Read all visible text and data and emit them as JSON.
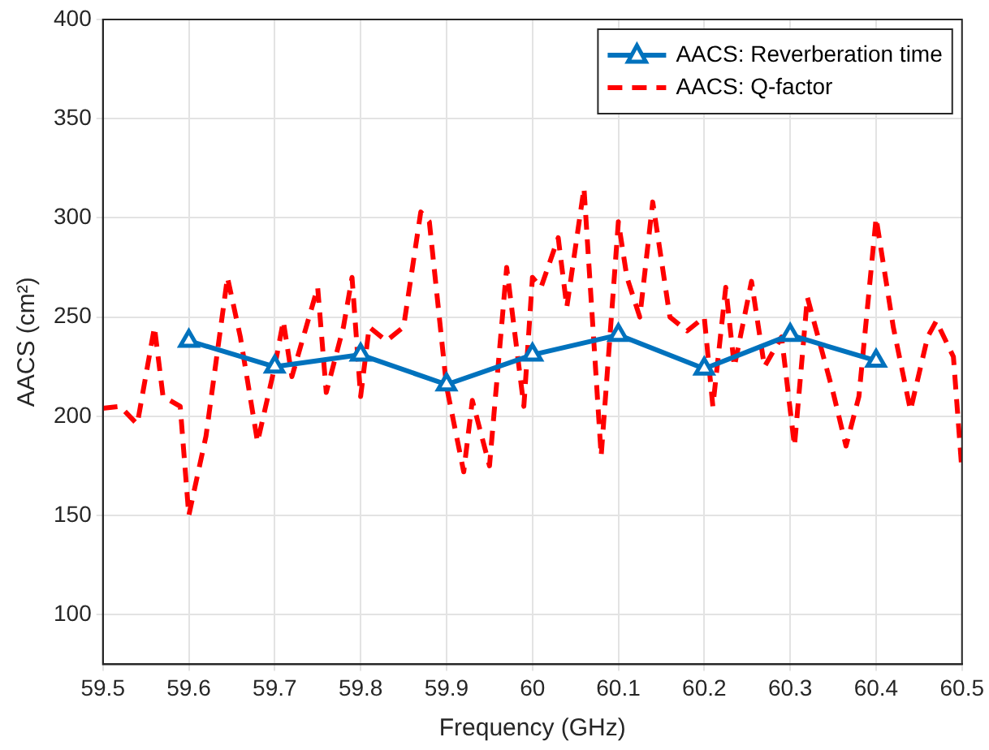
{
  "chart_data": {
    "type": "line",
    "xlabel": "Frequency (GHz)",
    "ylabel": "AACS (cm²)",
    "xlim": [
      59.5,
      60.5
    ],
    "xticks": [
      59.5,
      59.6,
      59.7,
      59.8,
      59.9,
      60,
      60.1,
      60.2,
      60.3,
      60.4,
      60.5
    ],
    "ylim": [
      75,
      400
    ],
    "yticks": [
      100,
      150,
      200,
      250,
      300,
      350,
      400
    ],
    "grid": true,
    "legend": "top right",
    "series": [
      {
        "name": "AACS: Reverberation time",
        "color": "#0072bd",
        "marker": "triangle",
        "line_style": "solid",
        "x": [
          59.6,
          59.7,
          59.8,
          59.9,
          60,
          60.1,
          60.2,
          60.3,
          60.4
        ],
        "values": [
          238,
          225,
          231,
          216,
          231,
          241,
          224,
          241,
          228
        ]
      },
      {
        "name": "AACS: Q-factor",
        "color": "#ff0000",
        "marker": "none",
        "line_style": "dashed",
        "x": [
          59.5,
          59.52,
          59.54,
          59.56,
          59.57,
          59.59,
          59.6,
          59.62,
          59.645,
          59.66,
          59.68,
          59.7,
          59.71,
          59.72,
          59.75,
          59.76,
          59.78,
          59.79,
          59.8,
          59.81,
          59.83,
          59.85,
          59.87,
          59.88,
          59.9,
          59.92,
          59.93,
          59.95,
          59.97,
          59.99,
          60,
          60.01,
          60.03,
          60.04,
          60.06,
          60.08,
          60.1,
          60.11,
          60.125,
          60.14,
          60.16,
          60.18,
          60.2,
          60.21,
          60.225,
          60.235,
          60.255,
          60.27,
          60.29,
          60.305,
          60.32,
          60.35,
          60.365,
          60.38,
          60.4,
          60.42,
          60.44,
          60.46,
          60.47,
          60.49,
          60.5
        ],
        "values": [
          204,
          205,
          196,
          245,
          210,
          205,
          150,
          190,
          270,
          240,
          187,
          225,
          248,
          220,
          265,
          212,
          245,
          270,
          210,
          245,
          238,
          245,
          303,
          298,
          215,
          172,
          208,
          175,
          275,
          205,
          270,
          265,
          290,
          255,
          315,
          180,
          298,
          270,
          250,
          308,
          250,
          243,
          250,
          205,
          265,
          225,
          268,
          225,
          240,
          185,
          260,
          212,
          185,
          210,
          300,
          245,
          203,
          240,
          248,
          230,
          172
        ]
      }
    ]
  }
}
